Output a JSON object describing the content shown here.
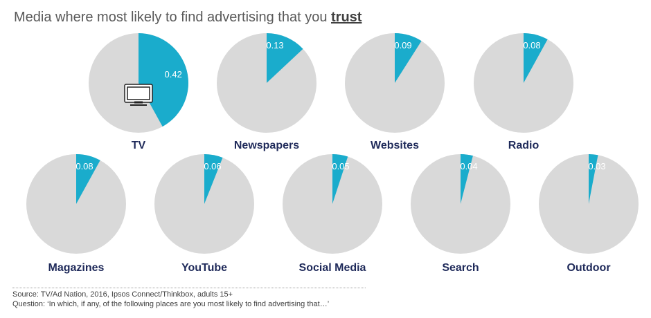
{
  "title": {
    "prefix": "Media where most likely to find advertising that you ",
    "emphasis": "trust"
  },
  "colors": {
    "slice": "#1aaccc",
    "remainder": "#d9d9d9",
    "value_text": "#ffffff",
    "label_text": "#1f2a5a"
  },
  "chart_data": {
    "type": "pie",
    "title": "Media where most likely to find advertising that you trust",
    "series": [
      {
        "name": "TV",
        "value": 0.42,
        "icon": "tv-icon"
      },
      {
        "name": "Newspapers",
        "value": 0.13
      },
      {
        "name": "Websites",
        "value": 0.09
      },
      {
        "name": "Radio",
        "value": 0.08
      },
      {
        "name": "Magazines",
        "value": 0.08
      },
      {
        "name": "YouTube",
        "value": 0.06
      },
      {
        "name": "Social Media",
        "value": 0.05
      },
      {
        "name": "Search",
        "value": 0.04
      },
      {
        "name": "Outdoor",
        "value": 0.03
      }
    ]
  },
  "footer": {
    "source": "Source: TV/Ad Nation, 2016,  Ipsos Connect/Thinkbox, adults 15+",
    "question": "Question: ‘In which, if any, of the following places are you most likely to find advertising that…’"
  }
}
